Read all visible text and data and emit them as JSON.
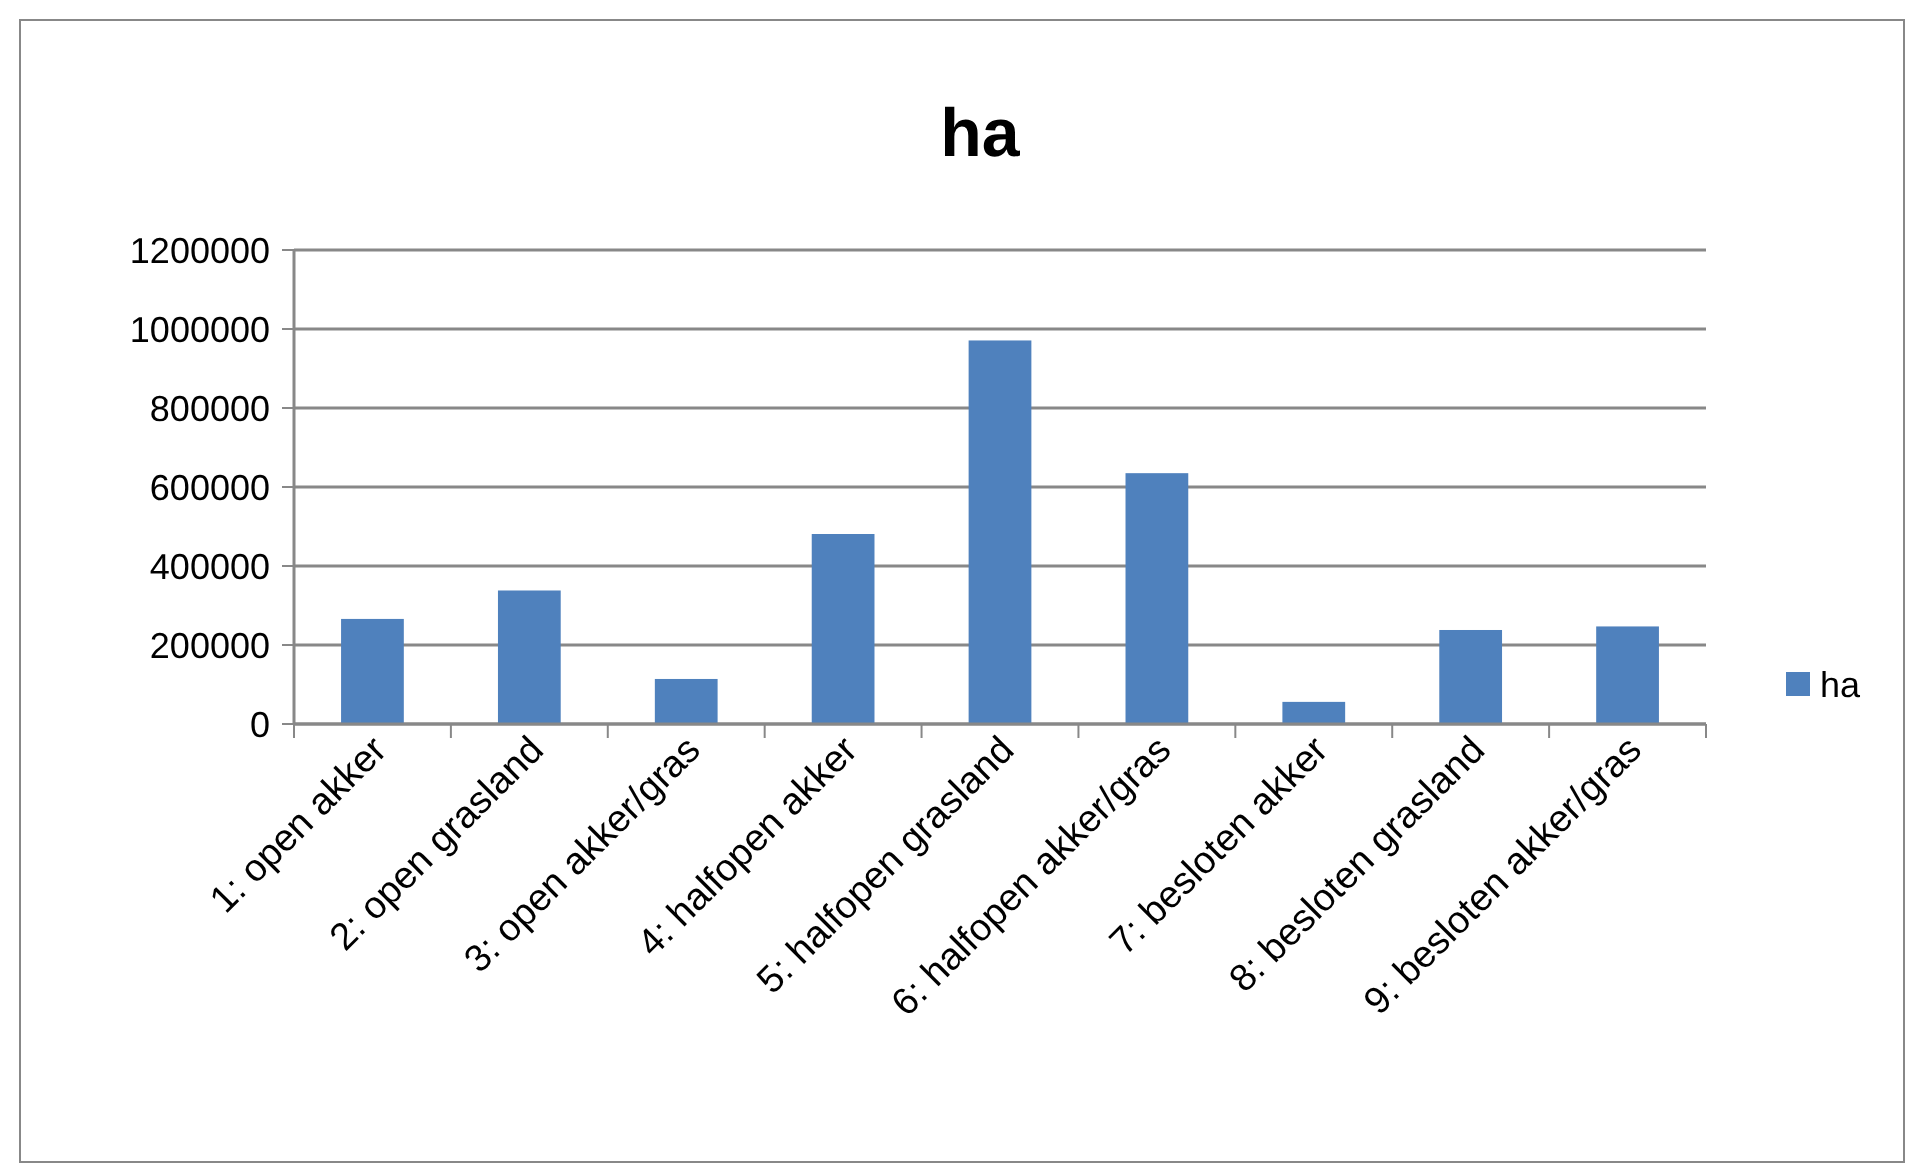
{
  "chart_data": {
    "type": "bar",
    "title": "ha",
    "categories": [
      "1: open akker",
      "2: open grasland",
      "3: open akker/gras",
      "4: halfopen akker",
      "5: halfopen grasland",
      "6: halfopen akker/gras",
      "7: besloten akker",
      "8: besloten grasland",
      "9: besloten akker/gras"
    ],
    "series": [
      {
        "name": "ha",
        "color": "#4f81bd",
        "values": [
          266000,
          338000,
          114000,
          481000,
          971000,
          635000,
          56000,
          238000,
          247000
        ]
      }
    ],
    "ylim": [
      0,
      1200000
    ],
    "yticks": [
      0,
      200000,
      400000,
      600000,
      800000,
      1000000,
      1200000
    ],
    "grid": "y",
    "legend": "right"
  }
}
